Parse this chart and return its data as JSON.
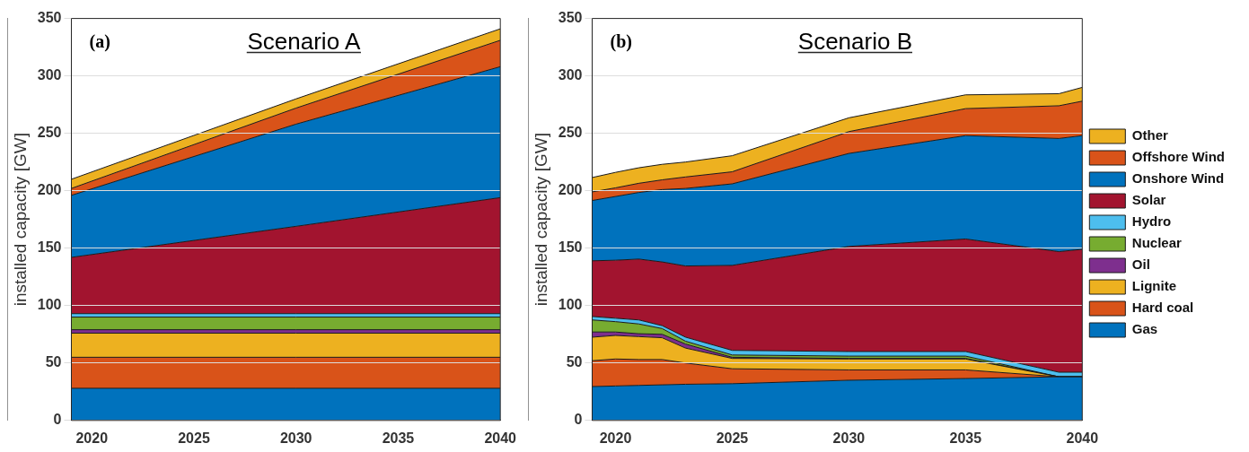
{
  "chart_data": [
    {
      "type": "area",
      "stacked": true,
      "title": "Scenario A",
      "ylabel": "installed capacity [GW]",
      "annotations": [
        "(a)"
      ],
      "x": [
        2019,
        2030,
        2040
      ],
      "xlim": [
        2019,
        2040
      ],
      "xticks": [
        2020,
        2025,
        2030,
        2035,
        2040
      ],
      "ylim": [
        0,
        350
      ],
      "yticks": [
        0,
        50,
        100,
        150,
        200,
        250,
        300,
        350
      ],
      "grid": "y",
      "legend": false,
      "series": [
        {
          "color": "#0072bd",
          "values": [
            28,
            28,
            28
          ]
        },
        {
          "color": "#d95319",
          "values": [
            27,
            27,
            27
          ]
        },
        {
          "color": "#edb120",
          "values": [
            21,
            21,
            21
          ]
        },
        {
          "color": "#7e2f8e",
          "values": [
            3,
            3,
            3
          ]
        },
        {
          "color": "#77ac30",
          "values": [
            11,
            11,
            11
          ]
        },
        {
          "color": "#4dbeee",
          "values": [
            3,
            3,
            3
          ]
        },
        {
          "color": "#a2142f",
          "values": [
            49,
            76,
            101
          ]
        },
        {
          "color": "#0072bd",
          "values": [
            54,
            89,
            114
          ]
        },
        {
          "color": "#d95319",
          "values": [
            6,
            14,
            23
          ]
        },
        {
          "color": "#edb120",
          "values": [
            8,
            8,
            10
          ]
        }
      ]
    },
    {
      "type": "area",
      "stacked": true,
      "title": "Scenario B",
      "ylabel": "installed capacity [GW]",
      "annotations": [
        "(b)"
      ],
      "x": [
        2019,
        2020,
        2021,
        2022,
        2023,
        2025,
        2030,
        2035,
        2039,
        2040
      ],
      "xlim": [
        2019,
        2040
      ],
      "xticks": [
        2020,
        2025,
        2030,
        2035,
        2040
      ],
      "ylim": [
        0,
        350
      ],
      "yticks": [
        0,
        50,
        100,
        150,
        200,
        250,
        300,
        350
      ],
      "grid": "y",
      "legend": "right",
      "series": [
        {
          "name": "Gas",
          "color": "#0072bd",
          "values": [
            29.5,
            30,
            30.5,
            31,
            31.5,
            32,
            35,
            36.5,
            38,
            38
          ]
        },
        {
          "name": "Hard coal",
          "color": "#d95319",
          "values": [
            22.5,
            23.5,
            22.5,
            22,
            18.5,
            13,
            9,
            7.5,
            0,
            0
          ]
        },
        {
          "name": "Lignite",
          "color": "#edb120",
          "values": [
            20.5,
            20.5,
            20,
            19,
            13,
            9,
            9.5,
            9.5,
            0,
            0
          ]
        },
        {
          "name": "Oil",
          "color": "#7e2f8e",
          "values": [
            4.5,
            3,
            2.5,
            3,
            3.5,
            1,
            0.5,
            0.5,
            0,
            0
          ]
        },
        {
          "name": "Nuclear",
          "color": "#77ac30",
          "values": [
            10.5,
            9,
            8.5,
            5,
            2.5,
            2,
            2,
            2,
            0,
            0
          ]
        },
        {
          "name": "Hydro",
          "color": "#4dbeee",
          "values": [
            3,
            3,
            3.5,
            2.5,
            3.5,
            4,
            4,
            4,
            4,
            4
          ]
        },
        {
          "name": "Solar",
          "color": "#a2142f",
          "values": [
            48.5,
            50.5,
            53,
            55.5,
            62,
            74,
            91.5,
            98,
            105,
            107
          ]
        },
        {
          "name": "Onshore Wind",
          "color": "#0072bd",
          "values": [
            52.5,
            55.5,
            58,
            63,
            67.5,
            71,
            81,
            90,
            98.5,
            99
          ]
        },
        {
          "name": "Offshore Wind",
          "color": "#d95319",
          "values": [
            7.5,
            7.5,
            8,
            8.5,
            10,
            10.5,
            19,
            23.5,
            28.5,
            30
          ]
        },
        {
          "name": "Other",
          "color": "#edb120",
          "values": [
            12.5,
            13.5,
            13.5,
            13.5,
            13,
            14,
            12,
            12,
            10.5,
            12
          ]
        }
      ]
    }
  ]
}
